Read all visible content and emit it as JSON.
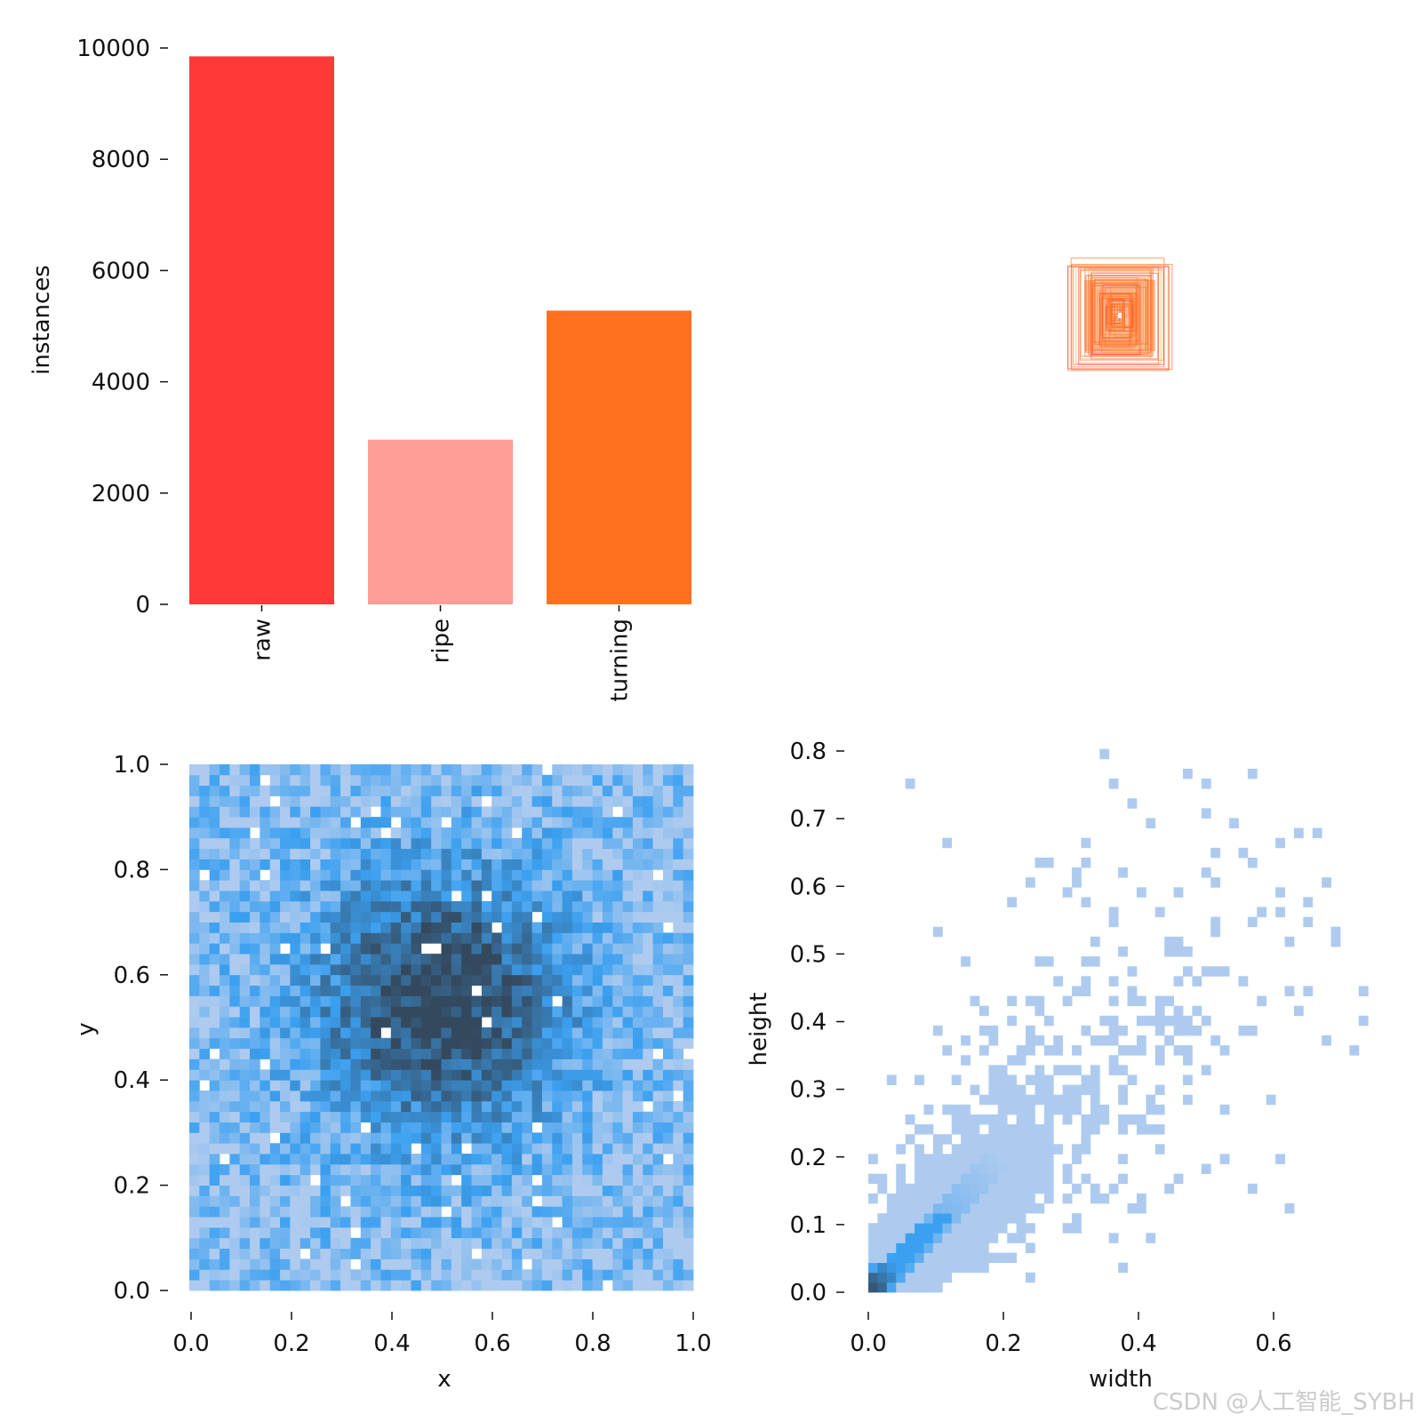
{
  "watermark": "CSDN @人工智能_SYBH",
  "colors": {
    "raw": "#ff3838",
    "ripe": "#ff9d97",
    "turning": "#ff701f",
    "hist_light": "#aecbef",
    "hist_mid": "#3ba0f0",
    "hist_dark": "#34495e"
  },
  "chart_data": [
    {
      "type": "bar",
      "title": "",
      "categories": [
        "raw",
        "ripe",
        "turning"
      ],
      "values": [
        9850,
        2960,
        5280
      ],
      "xlabel": "",
      "ylabel": "instances",
      "ylim": [
        0,
        10000
      ],
      "yticks": [
        "0",
        "2000",
        "4000",
        "6000",
        "8000",
        "10000"
      ]
    },
    {
      "type": "scatter",
      "title": "",
      "description_kind": "box-overlay",
      "series": [
        {
          "name": "boxes (width, height)",
          "values": [
            [
              0.29,
              0.31
            ],
            [
              0.24,
              0.28
            ],
            [
              0.2,
              0.26
            ],
            [
              0.18,
              0.24
            ],
            [
              0.16,
              0.22
            ],
            [
              0.14,
              0.2
            ],
            [
              0.12,
              0.18
            ],
            [
              0.1,
              0.16
            ],
            [
              0.09,
              0.14
            ],
            [
              0.08,
              0.12
            ],
            [
              0.07,
              0.1
            ],
            [
              0.06,
              0.08
            ],
            [
              0.05,
              0.07
            ],
            [
              0.04,
              0.06
            ],
            [
              0.03,
              0.05
            ],
            [
              0.02,
              0.03
            ]
          ]
        }
      ],
      "xlabel": "",
      "ylabel": ""
    },
    {
      "type": "heatmap",
      "title": "",
      "xlabel": "x",
      "ylabel": "y",
      "xlim": [
        0.0,
        1.0
      ],
      "ylim": [
        0.0,
        1.0
      ],
      "xticks": [
        "0.0",
        "0.2",
        "0.4",
        "0.6",
        "0.8",
        "1.0"
      ],
      "yticks": [
        "0.0",
        "0.2",
        "0.4",
        "0.6",
        "0.8",
        "1.0"
      ],
      "bins": 50,
      "density_peak": [
        0.5,
        0.55
      ]
    },
    {
      "type": "heatmap",
      "title": "",
      "xlabel": "width",
      "ylabel": "height",
      "xlim": [
        0.0,
        0.75
      ],
      "ylim": [
        0.0,
        0.8
      ],
      "xticks": [
        "0.0",
        "0.2",
        "0.4",
        "0.6"
      ],
      "yticks": [
        "0.0",
        "0.1",
        "0.2",
        "0.3",
        "0.4",
        "0.5",
        "0.6",
        "0.7",
        "0.8"
      ],
      "bins": 55,
      "density_peak": [
        0.02,
        0.02
      ]
    }
  ]
}
